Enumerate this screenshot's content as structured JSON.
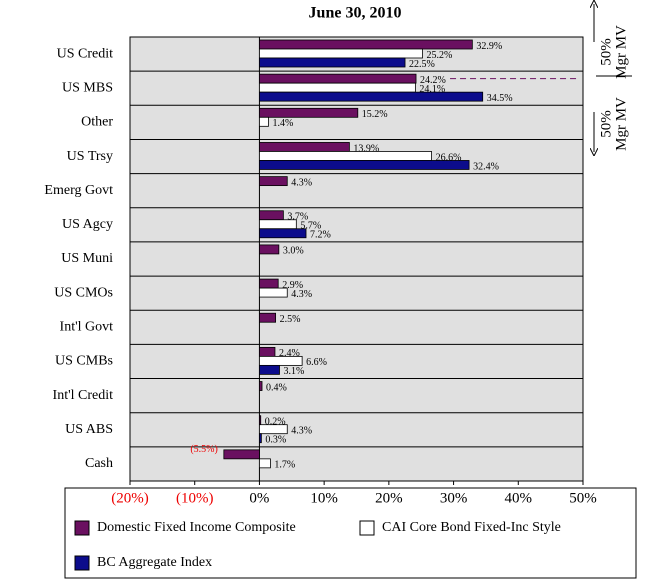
{
  "chart_data": {
    "type": "hbar",
    "title": "June 30, 2010",
    "categories": [
      "US Credit",
      "US MBS",
      "Other",
      "US Trsy",
      "Emerg Govt",
      "US Agcy",
      "US Muni",
      "US CMOs",
      "Int'l Govt",
      "US CMBs",
      "Int'l Credit",
      "US ABS",
      "Cash"
    ],
    "series": [
      {
        "name": "Domestic Fixed Income Composite",
        "color": "#6a1060",
        "values": [
          32.9,
          24.2,
          15.2,
          13.9,
          4.3,
          3.7,
          3.0,
          2.9,
          2.5,
          2.4,
          0.4,
          0.2,
          -5.5
        ],
        "value_labels": [
          "32.9%",
          "24.2%",
          "15.2%",
          "13.9%",
          "4.3%",
          "3.7%",
          "3.0%",
          "2.9%",
          "2.5%",
          "2.4%",
          "0.4%",
          "0.2%",
          "(5.5%)"
        ]
      },
      {
        "name": "CAI Core Bond Fixed-Inc Style",
        "color": "#ffffff",
        "values": [
          25.2,
          24.1,
          1.4,
          26.6,
          null,
          5.7,
          null,
          4.3,
          null,
          6.6,
          null,
          4.3,
          1.7
        ],
        "value_labels": [
          "25.2%",
          "24.1%",
          "1.4%",
          "26.6%",
          null,
          "5.7%",
          null,
          "4.3%",
          null,
          "6.6%",
          null,
          "4.3%",
          "1.7%"
        ]
      },
      {
        "name": "BC Aggregate Index",
        "color": "#0c0c8c",
        "values": [
          22.5,
          34.5,
          null,
          32.4,
          null,
          7.2,
          null,
          null,
          null,
          3.1,
          null,
          0.3,
          null
        ],
        "value_labels": [
          "22.5%",
          "34.5%",
          null,
          "32.4%",
          null,
          "7.2%",
          null,
          null,
          null,
          "3.1%",
          null,
          "0.3%",
          null
        ]
      }
    ],
    "xlim": [
      -20,
      50
    ],
    "xticks": [
      {
        "value": -20,
        "label": "(20%)"
      },
      {
        "value": -10,
        "label": "(10%)"
      },
      {
        "value": 0,
        "label": "0%"
      },
      {
        "value": 10,
        "label": "10%"
      },
      {
        "value": 20,
        "label": "20%"
      },
      {
        "value": 30,
        "label": "30%"
      },
      {
        "value": 40,
        "label": "40%"
      },
      {
        "value": 50,
        "label": "50%"
      }
    ],
    "annotations": [
      "50%",
      "Mgr MV",
      "50%",
      "Mgr MV"
    ]
  }
}
